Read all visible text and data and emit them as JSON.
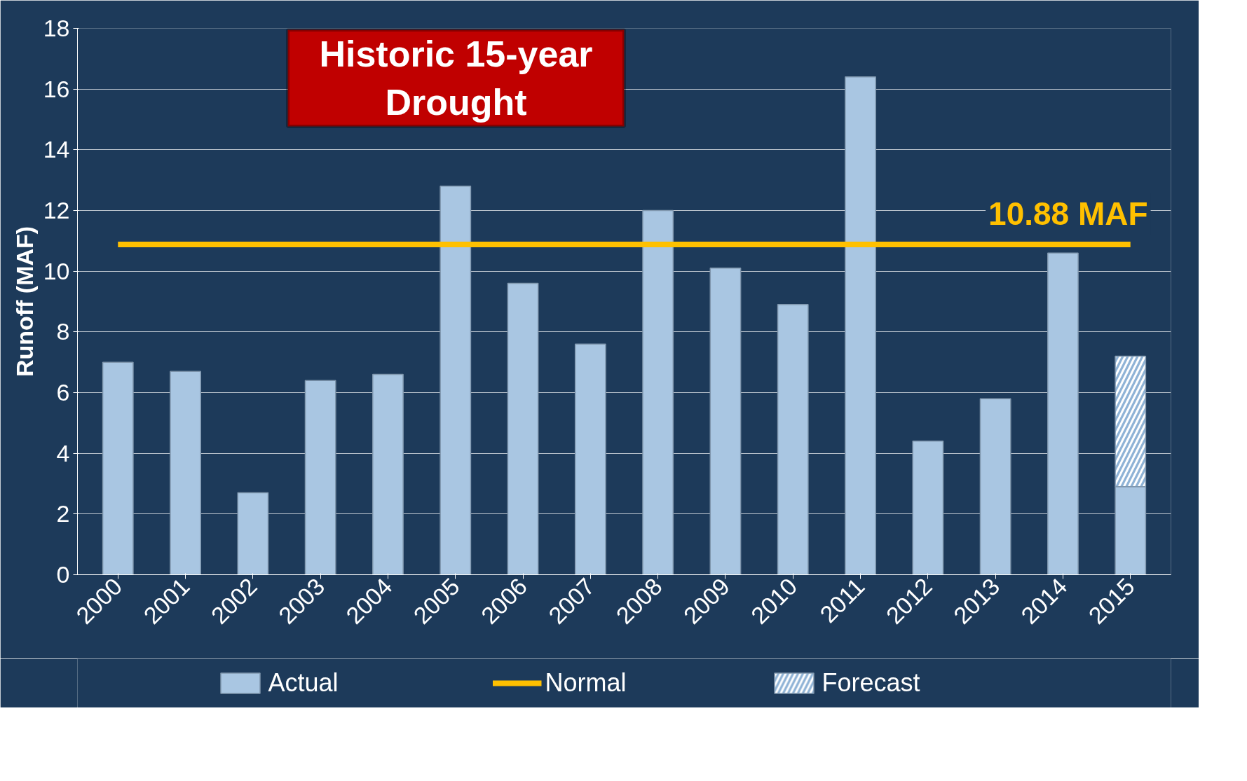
{
  "chart_data": {
    "type": "bar",
    "title": "Historic 15-year Drought",
    "ylabel": "Runoff (MAF)",
    "categories": [
      "2000",
      "2001",
      "2002",
      "2003",
      "2004",
      "2005",
      "2006",
      "2007",
      "2008",
      "2009",
      "2010",
      "2011",
      "2012",
      "2013",
      "2014",
      "2015"
    ],
    "stacked": true,
    "series": [
      {
        "name": "Actual",
        "color": "#a9c6e2",
        "values": [
          7.0,
          6.7,
          2.7,
          6.4,
          6.6,
          12.8,
          9.6,
          7.6,
          12.0,
          10.1,
          8.9,
          16.4,
          4.4,
          5.8,
          10.6,
          2.9
        ]
      },
      {
        "name": "Normal",
        "type": "line",
        "color": "#ffc000",
        "values": [
          10.88,
          10.88,
          10.88,
          10.88,
          10.88,
          10.88,
          10.88,
          10.88,
          10.88,
          10.88,
          10.88,
          10.88,
          10.88,
          10.88,
          10.88,
          10.88
        ]
      },
      {
        "name": "Forecast",
        "color": "#8fb3d6",
        "values": [
          null,
          null,
          null,
          null,
          null,
          null,
          null,
          null,
          null,
          null,
          null,
          null,
          null,
          null,
          null,
          4.3
        ]
      }
    ],
    "annotations": [
      {
        "text": "10.88 MAF",
        "x": "2015",
        "y": 10.88
      }
    ],
    "ylim": [
      0,
      18
    ],
    "yticks": [
      0,
      2,
      4,
      6,
      8,
      10,
      12,
      14,
      16,
      18
    ],
    "grid": "y",
    "legend": "bottom"
  }
}
